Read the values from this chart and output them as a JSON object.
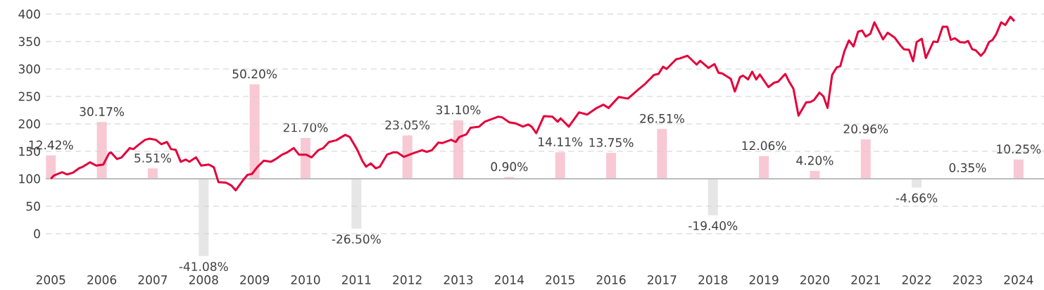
{
  "chart_data": {
    "type": "line",
    "xlim": [
      2004.9,
      2024.5
    ],
    "xticks": [
      2005,
      2006,
      2007,
      2008,
      2009,
      2010,
      2011,
      2012,
      2013,
      2014,
      2015,
      2016,
      2017,
      2018,
      2019,
      2020,
      2021,
      2022,
      2023,
      2024
    ],
    "ylim": [
      0,
      400
    ],
    "yticks": [
      0,
      50,
      100,
      150,
      200,
      250,
      300,
      350,
      400
    ],
    "grid": "y",
    "ref_lines": [
      {
        "axis": "y",
        "value": 100,
        "color": "#bdbdbd"
      }
    ],
    "series": [
      {
        "color": "#e4003b",
        "x": [
          2005.0,
          2005.06,
          2005.22,
          2005.32,
          2005.43,
          2005.55,
          2005.63,
          2005.77,
          2005.89,
          2006.03,
          2006.14,
          2006.18,
          2006.3,
          2006.39,
          2006.55,
          2006.62,
          2006.71,
          2006.85,
          2006.94,
          2007.06,
          2007.17,
          2007.28,
          2007.36,
          2007.45,
          2007.55,
          2007.65,
          2007.72,
          2007.85,
          2007.95,
          2008.1,
          2008.2,
          2008.29,
          2008.44,
          2008.54,
          2008.63,
          2008.77,
          2008.86,
          2008.95,
          2009.05,
          2009.18,
          2009.32,
          2009.4,
          2009.54,
          2009.64,
          2009.77,
          2009.87,
          2010.01,
          2010.12,
          2010.25,
          2010.35,
          2010.46,
          2010.6,
          2010.78,
          2010.87,
          2011.01,
          2011.12,
          2011.19,
          2011.28,
          2011.38,
          2011.46,
          2011.6,
          2011.72,
          2011.8,
          2011.93,
          2012.1,
          2012.29,
          2012.38,
          2012.48,
          2012.61,
          2012.68,
          2012.86,
          2012.95,
          2013.02,
          2013.16,
          2013.24,
          2013.41,
          2013.52,
          2013.78,
          2013.86,
          2014.0,
          2014.12,
          2014.27,
          2014.37,
          2014.44,
          2014.53,
          2014.68,
          2014.85,
          2014.95,
          2015.01,
          2015.17,
          2015.37,
          2015.53,
          2015.7,
          2015.85,
          2015.95,
          2016.15,
          2016.33,
          2016.54,
          2016.67,
          2016.84,
          2016.93,
          2017.02,
          2017.09,
          2017.28,
          2017.34,
          2017.5,
          2017.68,
          2017.75,
          2017.91,
          2018.03,
          2018.11,
          2018.18,
          2018.35,
          2018.43,
          2018.53,
          2018.59,
          2018.69,
          2018.77,
          2018.85,
          2018.92,
          2019.09,
          2019.2,
          2019.28,
          2019.42,
          2019.49,
          2019.58,
          2019.68,
          2019.83,
          2019.92,
          2019.99,
          2020.09,
          2020.17,
          2020.25,
          2020.34,
          2020.43,
          2020.5,
          2020.58,
          2020.67,
          2020.76,
          2020.85,
          2020.93,
          2021.0,
          2021.09,
          2021.17,
          2021.34,
          2021.43,
          2021.57,
          2021.68,
          2021.75,
          2021.85,
          2021.93,
          2022.0,
          2022.1,
          2022.18,
          2022.33,
          2022.41,
          2022.51,
          2022.6,
          2022.67,
          2022.75,
          2022.85,
          2022.94,
          2023.01,
          2023.09,
          2023.16,
          2023.26,
          2023.33,
          2023.42,
          2023.49,
          2023.56,
          2023.66,
          2023.74,
          2023.84,
          2023.92
        ],
        "values": [
          100,
          106,
          112,
          108,
          111,
          119,
          122,
          130,
          124,
          126,
          146,
          148,
          136,
          139,
          156,
          154,
          161,
          171,
          173,
          171,
          163,
          167,
          154,
          153,
          131,
          135,
          131,
          139,
          124,
          126,
          121,
          94,
          93,
          88,
          79,
          97,
          107,
          109,
          121,
          133,
          131,
          135,
          144,
          148,
          156,
          144,
          144,
          139,
          152,
          156,
          167,
          170,
          180,
          176,
          154,
          132,
          122,
          128,
          119,
          122,
          144,
          148,
          148,
          140,
          146,
          152,
          149,
          152,
          166,
          165,
          171,
          167,
          176,
          181,
          193,
          195,
          204,
          213,
          212,
          203,
          201,
          195,
          199,
          195,
          183,
          214,
          213,
          204,
          210,
          195,
          221,
          217,
          228,
          235,
          229,
          249,
          246,
          263,
          273,
          289,
          291,
          304,
          300,
          318,
          319,
          324,
          308,
          315,
          302,
          309,
          293,
          292,
          282,
          259,
          285,
          288,
          281,
          295,
          281,
          290,
          267,
          275,
          277,
          291,
          278,
          264,
          215,
          239,
          240,
          244,
          257,
          250,
          229,
          289,
          303,
          305,
          332,
          352,
          341,
          368,
          370,
          359,
          364,
          385,
          354,
          366,
          357,
          343,
          336,
          335,
          314,
          349,
          355,
          320,
          350,
          349,
          377,
          377,
          353,
          356,
          349,
          348,
          351,
          336,
          334,
          324,
          331,
          349,
          353,
          363,
          385,
          380,
          395,
          387
        ]
      },
      {
        "type": "bar",
        "axis": "y2",
        "x": [
          2005,
          2006,
          2007,
          2008,
          2009,
          2010,
          2011,
          2012,
          2013,
          2014,
          2015,
          2016,
          2017,
          2018,
          2019,
          2020,
          2021,
          2022,
          2023,
          2024
        ],
        "values": [
          12.42,
          30.17,
          5.51,
          -41.08,
          50.2,
          21.7,
          -26.5,
          23.05,
          31.1,
          0.9,
          14.11,
          13.75,
          26.51,
          -19.4,
          12.06,
          4.2,
          20.96,
          -4.66,
          0.35,
          10.25
        ],
        "value_labels": [
          "12.42%",
          "30.17%",
          "5.51%",
          "-41.08%",
          "50.20%",
          "21.70%",
          "-26.50%",
          "23.05%",
          "31.10%",
          "0.90%",
          "14.11%",
          "13.75%",
          "26.51%",
          "-19.40%",
          "12.06%",
          "4.20%",
          "20.96%",
          "-4.66%",
          "0.35%",
          "10.25%"
        ],
        "colors": [
          "#f8c9d4",
          "#f8c9d4",
          "#f8c9d4",
          "#e6e6e6",
          "#f8c9d4",
          "#f8c9d4",
          "#e6e6e6",
          "#f8c9d4",
          "#f8c9d4",
          "#f8c9d4",
          "#f8c9d4",
          "#f8c9d4",
          "#f8c9d4",
          "#e6e6e6",
          "#f8c9d4",
          "#f8c9d4",
          "#f8c9d4",
          "#e6e6e6",
          "#f8c9d4",
          "#f8c9d4"
        ]
      }
    ]
  }
}
